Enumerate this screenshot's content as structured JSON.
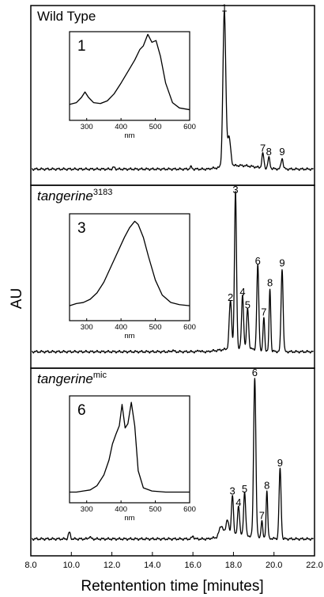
{
  "chart_data": {
    "type": "line",
    "xlabel": "Retentention time [minutes]",
    "ylabel": "AU",
    "xlim": [
      8.0,
      22.0
    ],
    "xticks": [
      "8.0",
      "10.0",
      "12.0",
      "14.0",
      "16.0",
      "18.0",
      "20.0",
      "22.0"
    ],
    "panels": [
      {
        "label_main": "Wild Type",
        "label_sup": "",
        "baseline_frac": 0.91,
        "noise_peaks": [
          {
            "x": 12.1,
            "h": 0.01
          },
          {
            "x": 15.9,
            "h": 0.012
          }
        ],
        "peaks": [
          {
            "label": "1",
            "x": 17.55,
            "h": 0.86,
            "w": 0.07
          },
          {
            "label": "",
            "x": 17.78,
            "h": 0.16,
            "w": 0.08
          },
          {
            "label": "7",
            "x": 19.45,
            "h": 0.08,
            "w": 0.05
          },
          {
            "label": "8",
            "x": 19.75,
            "h": 0.06,
            "w": 0.05
          },
          {
            "label": "9",
            "x": 20.4,
            "h": 0.06,
            "w": 0.05
          }
        ],
        "inset": {
          "number": "1",
          "xlabel": "nm",
          "xlim": [
            250,
            600
          ],
          "xticks": [
            "300",
            "400",
            "500",
            "600"
          ],
          "spectrum": [
            [
              250,
              0.18
            ],
            [
              270,
              0.2
            ],
            [
              285,
              0.26
            ],
            [
              295,
              0.32
            ],
            [
              305,
              0.26
            ],
            [
              320,
              0.2
            ],
            [
              340,
              0.19
            ],
            [
              360,
              0.22
            ],
            [
              380,
              0.3
            ],
            [
              400,
              0.42
            ],
            [
              420,
              0.55
            ],
            [
              440,
              0.68
            ],
            [
              455,
              0.8
            ],
            [
              465,
              0.84
            ],
            [
              478,
              0.97
            ],
            [
              490,
              0.88
            ],
            [
              502,
              0.9
            ],
            [
              515,
              0.72
            ],
            [
              530,
              0.42
            ],
            [
              550,
              0.2
            ],
            [
              570,
              0.14
            ],
            [
              600,
              0.12
            ]
          ]
        }
      },
      {
        "label_main": "tangerine",
        "label_sup": "3183",
        "baseline_frac": 0.91,
        "noise_peaks": [
          {
            "x": 15.0,
            "h": 0.008
          },
          {
            "x": 16.3,
            "h": 0.008
          }
        ],
        "peaks": [
          {
            "label": "2",
            "x": 17.85,
            "h": 0.26,
            "w": 0.06
          },
          {
            "label": "3",
            "x": 18.1,
            "h": 0.85,
            "w": 0.05
          },
          {
            "label": "4",
            "x": 18.45,
            "h": 0.29,
            "w": 0.05
          },
          {
            "label": "5",
            "x": 18.7,
            "h": 0.22,
            "w": 0.05
          },
          {
            "label": "6",
            "x": 19.2,
            "h": 0.46,
            "w": 0.05
          },
          {
            "label": "7",
            "x": 19.5,
            "h": 0.18,
            "w": 0.04
          },
          {
            "label": "8",
            "x": 19.8,
            "h": 0.34,
            "w": 0.04
          },
          {
            "label": "9",
            "x": 20.4,
            "h": 0.45,
            "w": 0.05
          }
        ],
        "inset": {
          "number": "3",
          "xlabel": "nm",
          "xlim": [
            250,
            600
          ],
          "xticks": [
            "300",
            "400",
            "500",
            "600"
          ],
          "spectrum": [
            [
              250,
              0.14
            ],
            [
              270,
              0.16
            ],
            [
              290,
              0.17
            ],
            [
              310,
              0.2
            ],
            [
              330,
              0.26
            ],
            [
              350,
              0.36
            ],
            [
              370,
              0.5
            ],
            [
              390,
              0.64
            ],
            [
              410,
              0.78
            ],
            [
              425,
              0.87
            ],
            [
              440,
              0.93
            ],
            [
              450,
              0.9
            ],
            [
              465,
              0.78
            ],
            [
              480,
              0.6
            ],
            [
              500,
              0.38
            ],
            [
              520,
              0.24
            ],
            [
              545,
              0.17
            ],
            [
              570,
              0.15
            ],
            [
              600,
              0.14
            ]
          ]
        }
      },
      {
        "label_main": "tangerine",
        "label_sup": "mic",
        "baseline_frac": 0.91,
        "noise_peaks": [
          {
            "x": 9.9,
            "h": 0.035
          },
          {
            "x": 10.9,
            "h": 0.012
          },
          {
            "x": 16.0,
            "h": 0.015
          }
        ],
        "peaks": [
          {
            "label": "",
            "x": 17.4,
            "h": 0.06,
            "w": 0.1
          },
          {
            "label": "",
            "x": 17.7,
            "h": 0.09,
            "w": 0.07
          },
          {
            "label": "3",
            "x": 17.95,
            "h": 0.22,
            "w": 0.05
          },
          {
            "label": "4",
            "x": 18.25,
            "h": 0.16,
            "w": 0.05
          },
          {
            "label": "5",
            "x": 18.55,
            "h": 0.23,
            "w": 0.05
          },
          {
            "label": "6",
            "x": 19.05,
            "h": 0.85,
            "w": 0.055
          },
          {
            "label": "7",
            "x": 19.4,
            "h": 0.09,
            "w": 0.04
          },
          {
            "label": "8",
            "x": 19.65,
            "h": 0.25,
            "w": 0.04
          },
          {
            "label": "9",
            "x": 20.3,
            "h": 0.37,
            "w": 0.05
          }
        ],
        "inset": {
          "number": "6",
          "xlabel": "nm",
          "xlim": [
            250,
            600
          ],
          "xticks": [
            "300",
            "400",
            "500",
            "600"
          ],
          "spectrum": [
            [
              250,
              0.1
            ],
            [
              270,
              0.1
            ],
            [
              290,
              0.11
            ],
            [
              310,
              0.12
            ],
            [
              330,
              0.16
            ],
            [
              350,
              0.26
            ],
            [
              365,
              0.4
            ],
            [
              375,
              0.55
            ],
            [
              385,
              0.64
            ],
            [
              395,
              0.72
            ],
            [
              403,
              0.92
            ],
            [
              412,
              0.7
            ],
            [
              420,
              0.74
            ],
            [
              430,
              0.94
            ],
            [
              440,
              0.72
            ],
            [
              450,
              0.3
            ],
            [
              465,
              0.14
            ],
            [
              490,
              0.11
            ],
            [
              530,
              0.1
            ],
            [
              600,
              0.1
            ]
          ]
        }
      }
    ]
  }
}
